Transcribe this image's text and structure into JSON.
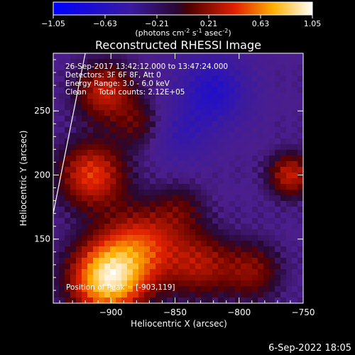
{
  "colorbar": {
    "ticks": [
      "-1.05",
      "-0.63",
      "-0.21",
      "0.21",
      "0.63",
      "1.05"
    ],
    "units_prefix": "(photons cm",
    "units_exp1": "-2",
    "units_mid": " s",
    "units_exp2": "-1",
    "units_mid2": " asec",
    "units_exp3": "-2",
    "units_suffix": ")"
  },
  "title": "Reconstructed RHESSI Image",
  "annotations": {
    "time": "26-Sep-2017 13:42:12.000 to 13:47:24.000",
    "detectors": "Detectors: 3F 6F 8F, Att 0",
    "energy": "Energy Range: 3.0 - 6.0 keV",
    "clean": "Clean     Total counts: 2.12E+05",
    "peak": "Position of Peak = [-903,119]"
  },
  "footer": {
    "date": "6-Sep-2022 18:05"
  },
  "chart_data": {
    "type": "heatmap",
    "title": "Reconstructed RHESSI Image",
    "xlabel": "Heliocentric X (arcsec)",
    "ylabel": "Heliocentric Y (arcsec)",
    "xlim": [
      -945,
      -750
    ],
    "ylim": [
      100,
      295
    ],
    "x_ticks": [
      -900,
      -850,
      -800,
      -750
    ],
    "x_tick_labels": [
      "−900",
      "−850",
      "−800",
      "−750"
    ],
    "y_ticks": [
      150,
      200,
      250
    ],
    "y_tick_labels": [
      "150",
      "200",
      "250"
    ],
    "color_scale": {
      "min": -1.05,
      "max": 1.05,
      "colormap": "RHESSI blue-purple-red-yellow-white"
    },
    "peak": {
      "x": -903,
      "y": 119
    },
    "sources": [
      {
        "x": -903,
        "y": 119,
        "amp": 1.0,
        "sigma": 20
      },
      {
        "x": -875,
        "y": 145,
        "amp": 0.55,
        "sigma": 22
      },
      {
        "x": -915,
        "y": 200,
        "amp": 0.6,
        "sigma": 18
      },
      {
        "x": -905,
        "y": 265,
        "amp": 0.5,
        "sigma": 16
      },
      {
        "x": -878,
        "y": 240,
        "amp": 0.25,
        "sigma": 14
      },
      {
        "x": -760,
        "y": 200,
        "amp": 0.5,
        "sigma": 12
      },
      {
        "x": -830,
        "y": 130,
        "amp": 0.4,
        "sigma": 18
      },
      {
        "x": -790,
        "y": 125,
        "amp": 0.35,
        "sigma": 16
      },
      {
        "x": -845,
        "y": 175,
        "amp": 0.2,
        "sigma": 14
      }
    ],
    "negative_regions": [
      {
        "x": -820,
        "y": 265,
        "amp": -0.45,
        "sigma": 20
      },
      {
        "x": -845,
        "y": 230,
        "amp": -0.25,
        "sigma": 16
      }
    ],
    "limb_line": [
      [
        -945,
        170
      ],
      [
        -920,
        295
      ]
    ]
  }
}
